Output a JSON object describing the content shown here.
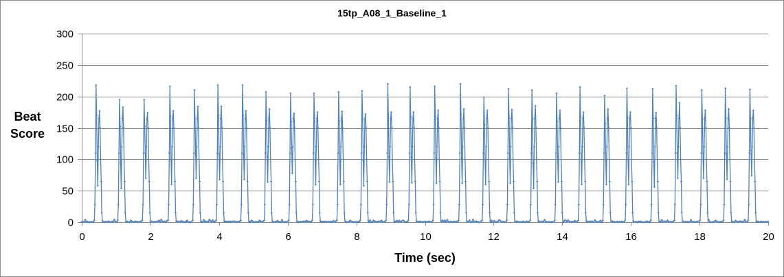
{
  "chart": {
    "title": "15tp_A08_1_Baseline_1",
    "ylabel_line1": "Beat",
    "ylabel_line2": "Score",
    "xlabel": "Time (sec)",
    "line_color": "#4f81bd",
    "grid_color": "#878787",
    "border_color": "#8c8c8c"
  },
  "chart_data": {
    "type": "line",
    "title": "15tp_A08_1_Baseline_1",
    "xlabel": "Time (sec)",
    "ylabel": "Beat Score",
    "xlim": [
      0,
      20
    ],
    "ylim": [
      0,
      300
    ],
    "xticks": [
      0,
      2,
      4,
      6,
      8,
      10,
      12,
      14,
      16,
      18,
      20
    ],
    "yticks": [
      0,
      50,
      100,
      150,
      200,
      250,
      300
    ],
    "grid": "horizontal",
    "legend": "none",
    "markers": true,
    "series": [
      {
        "name": "Beat Score",
        "beats": [
          {
            "t": 0.45,
            "peak1": 218,
            "dip": 58,
            "peak2": 177
          },
          {
            "t": 1.15,
            "peak1": 195,
            "dip": 54,
            "peak2": 183
          },
          {
            "t": 1.85,
            "peak1": 195,
            "dip": 70,
            "peak2": 174
          },
          {
            "t": 2.6,
            "peak1": 216,
            "dip": 60,
            "peak2": 177
          },
          {
            "t": 3.3,
            "peak1": 210,
            "dip": 70,
            "peak2": 184
          },
          {
            "t": 4.0,
            "peak1": 218,
            "dip": 68,
            "peak2": 184
          },
          {
            "t": 4.7,
            "peak1": 218,
            "dip": 68,
            "peak2": 177
          },
          {
            "t": 5.4,
            "peak1": 207,
            "dip": 64,
            "peak2": 180
          },
          {
            "t": 6.1,
            "peak1": 205,
            "dip": 78,
            "peak2": 173
          },
          {
            "t": 6.8,
            "peak1": 205,
            "dip": 60,
            "peak2": 175
          },
          {
            "t": 7.5,
            "peak1": 207,
            "dip": 60,
            "peak2": 176
          },
          {
            "t": 8.2,
            "peak1": 209,
            "dip": 58,
            "peak2": 172
          },
          {
            "t": 8.95,
            "peak1": 220,
            "dip": 64,
            "peak2": 175
          },
          {
            "t": 9.6,
            "peak1": 215,
            "dip": 63,
            "peak2": 175
          },
          {
            "t": 10.3,
            "peak1": 216,
            "dip": 62,
            "peak2": 178
          },
          {
            "t": 11.05,
            "peak1": 220,
            "dip": 62,
            "peak2": 180
          },
          {
            "t": 11.75,
            "peak1": 199,
            "dip": 60,
            "peak2": 178
          },
          {
            "t": 12.45,
            "peak1": 212,
            "dip": 62,
            "peak2": 179
          },
          {
            "t": 13.15,
            "peak1": 210,
            "dip": 54,
            "peak2": 185
          },
          {
            "t": 13.85,
            "peak1": 205,
            "dip": 64,
            "peak2": 178
          },
          {
            "t": 14.55,
            "peak1": 215,
            "dip": 60,
            "peak2": 175
          },
          {
            "t": 15.25,
            "peak1": 201,
            "dip": 60,
            "peak2": 180
          },
          {
            "t": 15.9,
            "peak1": 213,
            "dip": 60,
            "peak2": 175
          },
          {
            "t": 16.65,
            "peak1": 212,
            "dip": 56,
            "peak2": 174
          },
          {
            "t": 17.35,
            "peak1": 217,
            "dip": 70,
            "peak2": 190
          },
          {
            "t": 18.1,
            "peak1": 210,
            "dip": 70,
            "peak2": 178
          },
          {
            "t": 18.8,
            "peak1": 213,
            "dip": 68,
            "peak2": 180
          },
          {
            "t": 19.5,
            "peak1": 211,
            "dip": 74,
            "peak2": 178
          }
        ],
        "baseline": 0
      }
    ]
  }
}
